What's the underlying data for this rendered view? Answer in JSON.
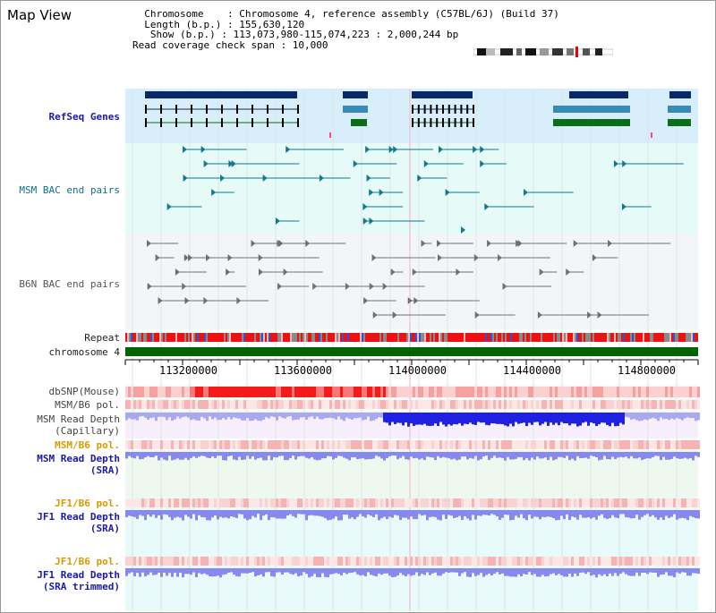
{
  "title": "Map View",
  "info": {
    "chromosome_key": "Chromosome",
    "chromosome_val": ": Chromosome 4, reference assembly (C57BL/6J) (Build 37)",
    "length_key": "Length (b.p.)",
    "length_val": ": 155,630,120",
    "show_key": "Show (b.p.)",
    "show_val": ": 113,073,980-115,074,223 : 2,000,244 bp",
    "coverage_line": "Read coverage check span : 10,000"
  },
  "tracks": {
    "refseq": "RefSeq Genes",
    "msm_bac": "MSM BAC end pairs",
    "b6n_bac": "B6N BAC end pairs",
    "repeat": "Repeat",
    "chromosome": "chromosome 4",
    "dbsnp": "dbSNP(Mouse)",
    "msm_b6_pol": "MSM/B6 pol.",
    "msm_read_depth_cap_1": "MSM Read Depth",
    "msm_read_depth_cap_2": "(Capillary)",
    "msm_b6_pol_2": "MSM/B6 pol.",
    "msm_sra_1": "MSM Read Depth",
    "msm_sra_2": "(SRA)",
    "jf1_b6_pol": "JF1/B6 pol.",
    "jf1_sra_1": "JF1 Read Depth",
    "jf1_sra_2": "(SRA)",
    "jf1_b6_pol_2": "JF1/B6 pol.",
    "jf1_trim_1": "JF1 Read Depth",
    "jf1_trim_2": "(SRA trimmed)"
  },
  "axis_ticks": [
    "113200000",
    "113600000",
    "114000000",
    "114400000",
    "114800000"
  ],
  "colors": {
    "refseq_bg": "#d8eefa",
    "bac_bg": "#e6faf8",
    "b6n_bg": "#f2f6f8",
    "chromosome_bar": "#006400",
    "gene_dark": "#0a2a66",
    "gene_mid": "#3a8ab8",
    "gene_green": "#0a6e16",
    "bac_msm": "#11788f",
    "bac_b6n": "#707070",
    "depth_blue": "#2020e0",
    "depth_light": "#8888ee",
    "snp_red": "#f02020"
  }
}
